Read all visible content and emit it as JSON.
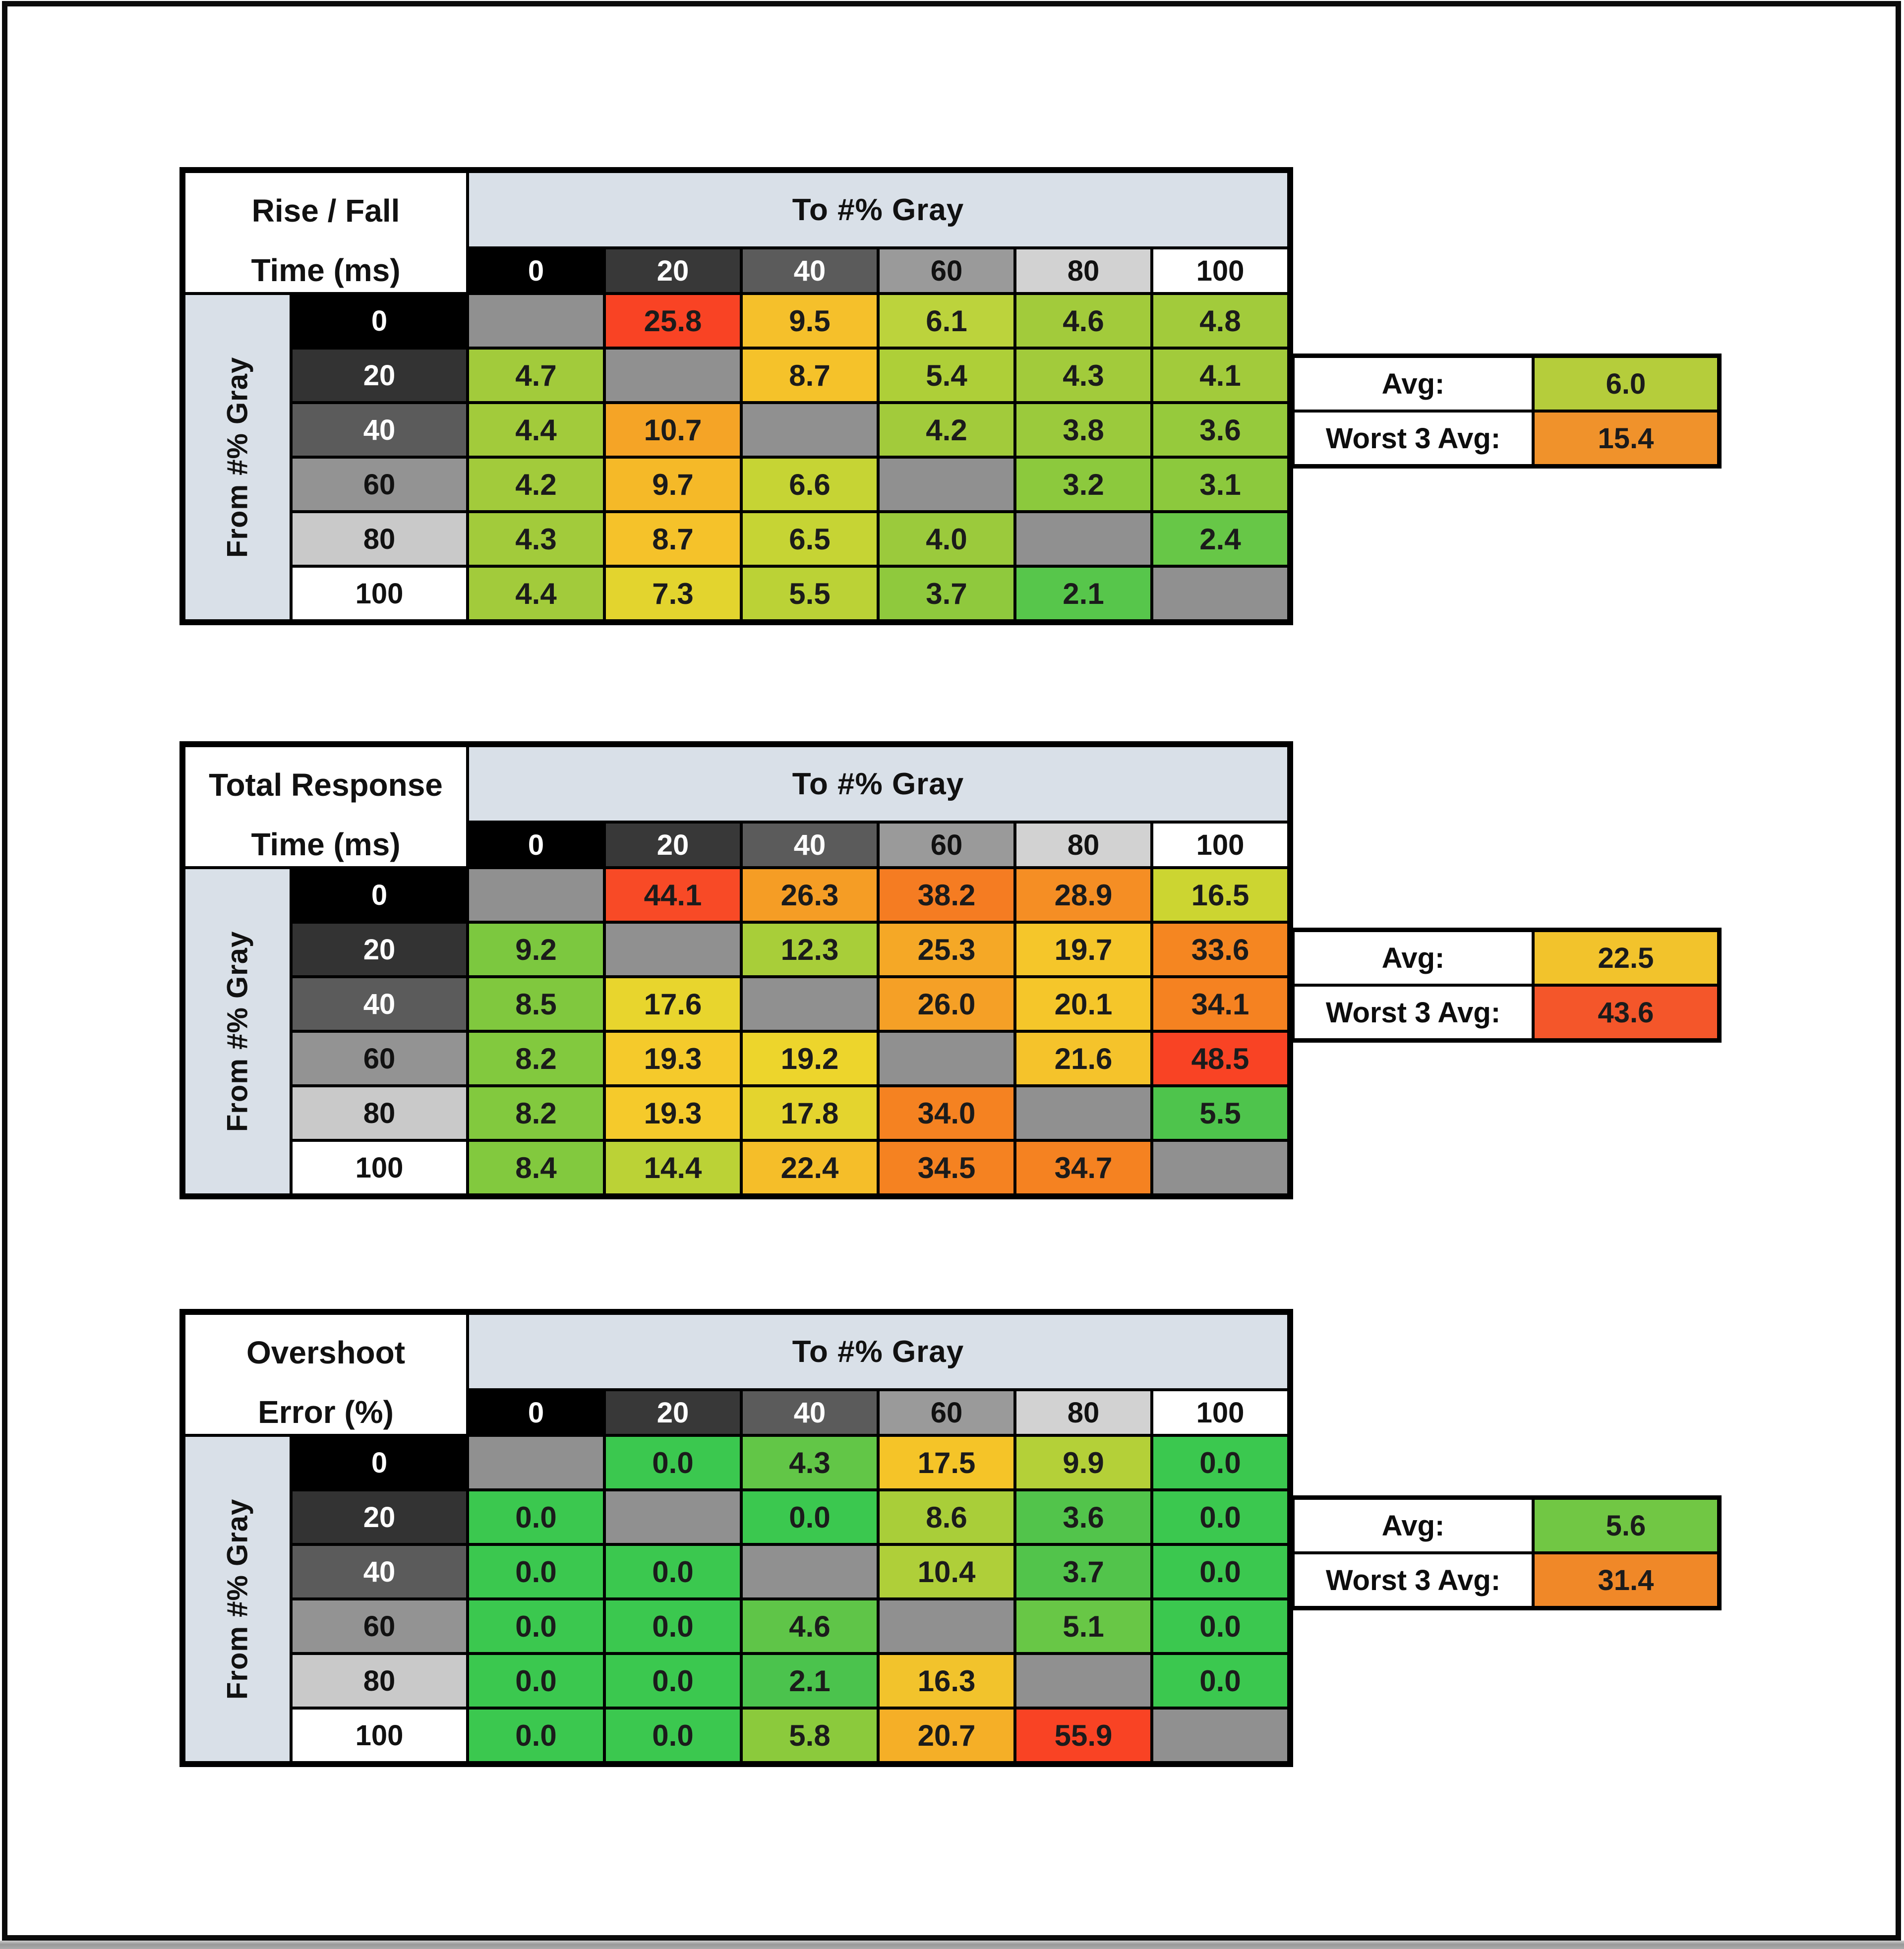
{
  "style": {
    "band_color": "#D9E0E8",
    "diagonal_color": "#909090",
    "grid_line_color": "#000000",
    "number_text_color": "#1B1B1B",
    "header_text_colors": [
      "#FFFFFF",
      "#FFFFFF",
      "#FFFFFF",
      "#111111",
      "#111111",
      "#111111"
    ],
    "row_header_bg": [
      "#000000",
      "#333333",
      "#5B5B5B",
      "#939393",
      "#C9C9C9",
      "#FFFFFF"
    ],
    "col_header_bg": [
      "#000000",
      "#383838",
      "#5B5B5B",
      "#9A9A9A",
      "#D2D2D2",
      "#FFFFFF"
    ]
  },
  "chart_data": [
    {
      "type": "heatmap",
      "title": "Rise / Fall Time (ms)",
      "title_lines": [
        "Rise / Fall",
        "Time (ms)"
      ],
      "col_axis_label": "To #% Gray",
      "row_axis_label": "From #% Gray",
      "categories": [
        "0",
        "20",
        "40",
        "60",
        "80",
        "100"
      ],
      "matrix": [
        [
          null,
          25.8,
          9.5,
          6.1,
          4.6,
          4.8
        ],
        [
          4.7,
          null,
          8.7,
          5.4,
          4.3,
          4.1
        ],
        [
          4.4,
          10.7,
          null,
          4.2,
          3.8,
          3.6
        ],
        [
          4.2,
          9.7,
          6.6,
          null,
          3.2,
          3.1
        ],
        [
          4.3,
          8.7,
          6.5,
          4.0,
          null,
          2.4
        ],
        [
          4.4,
          7.3,
          5.5,
          3.7,
          2.1,
          null
        ]
      ],
      "cell_colors": [
        [
          null,
          "#F94324",
          "#F5C02B",
          "#BCD33C",
          "#A2CB3B",
          "#A2CB3B"
        ],
        [
          "#A2CB3B",
          null,
          "#F5C22A",
          "#AECF38",
          "#A2CB3B",
          "#A2CB3B"
        ],
        [
          "#A2CB3B",
          "#F5A426",
          null,
          "#A2CB3B",
          "#9BCA3C",
          "#96CA3C"
        ],
        [
          "#A2CB3B",
          "#F5B928",
          "#C6D434",
          null,
          "#8CC93D",
          "#8CC93D"
        ],
        [
          "#A2CB3B",
          "#F5C22A",
          "#C6D434",
          "#9BCA3C",
          null,
          "#67C747"
        ],
        [
          "#A2CB3B",
          "#E3D42E",
          "#BBD236",
          "#8FC93D",
          "#57C64B",
          null
        ]
      ],
      "stats": {
        "avg_label": "Avg:",
        "avg": 6.0,
        "avg_color": "#B5CD3B",
        "worst_label": "Worst 3 Avg:",
        "worst": 15.4,
        "worst_color": "#F0922B"
      }
    },
    {
      "type": "heatmap",
      "title": "Total Response Time (ms)",
      "title_lines": [
        "Total Response",
        "Time (ms)"
      ],
      "col_axis_label": "To #% Gray",
      "row_axis_label": "From #% Gray",
      "categories": [
        "0",
        "20",
        "40",
        "60",
        "80",
        "100"
      ],
      "matrix": [
        [
          null,
          44.1,
          26.3,
          38.2,
          28.9,
          16.5
        ],
        [
          9.2,
          null,
          12.3,
          25.3,
          19.7,
          33.6
        ],
        [
          8.5,
          17.6,
          null,
          26.0,
          20.1,
          34.1
        ],
        [
          8.2,
          19.3,
          19.2,
          null,
          21.6,
          48.5
        ],
        [
          8.2,
          19.3,
          17.8,
          34.0,
          null,
          5.5
        ],
        [
          8.4,
          14.4,
          22.4,
          34.5,
          34.7,
          null
        ]
      ],
      "cell_colors": [
        [
          null,
          "#F84A26",
          "#F59D25",
          "#F57C22",
          "#F58E24",
          "#CCD531"
        ],
        [
          "#7CC83F",
          null,
          "#A8CE39",
          "#F5A826",
          "#F5C62A",
          "#F58621"
        ],
        [
          "#80C83E",
          "#E8D52D",
          null,
          "#F5A026",
          "#F5C62A",
          "#F58221"
        ],
        [
          "#82C93E",
          "#F5CA2B",
          "#EDD52C",
          null,
          "#F5C32B",
          "#F94324"
        ],
        [
          "#82C93E",
          "#F5CA2B",
          "#E4D42E",
          "#F58221",
          null,
          "#4EC44C"
        ],
        [
          "#82C93E",
          "#BBD236",
          "#F5BE29",
          "#F58221",
          "#F58221",
          null
        ]
      ],
      "stats": {
        "avg_label": "Avg:",
        "avg": 22.5,
        "avg_color": "#F2C32C",
        "worst_label": "Worst 3 Avg:",
        "worst": 43.6,
        "worst_color": "#F4562A"
      }
    },
    {
      "type": "heatmap",
      "title": "Overshoot Error (%)",
      "title_lines": [
        "Overshoot",
        "Error (%)"
      ],
      "col_axis_label": "To #% Gray",
      "row_axis_label": "From #% Gray",
      "categories": [
        "0",
        "20",
        "40",
        "60",
        "80",
        "100"
      ],
      "matrix": [
        [
          null,
          0.0,
          4.3,
          17.5,
          9.9,
          0.0
        ],
        [
          0.0,
          null,
          0.0,
          8.6,
          3.6,
          0.0
        ],
        [
          0.0,
          0.0,
          null,
          10.4,
          3.7,
          0.0
        ],
        [
          0.0,
          0.0,
          4.6,
          null,
          5.1,
          0.0
        ],
        [
          0.0,
          0.0,
          2.1,
          16.3,
          null,
          0.0
        ],
        [
          0.0,
          0.0,
          5.8,
          20.7,
          55.9,
          null
        ]
      ],
      "cell_colors": [
        [
          null,
          "#3BC84F",
          "#62C647",
          "#F5C428",
          "#B4D038",
          "#3BC84F"
        ],
        [
          "#3BC84F",
          null,
          "#3BC84F",
          "#A9CE39",
          "#52C44B",
          "#3BC84F"
        ],
        [
          "#3BC84F",
          "#3BC84F",
          null,
          "#AFCF39",
          "#52C44B",
          "#3BC84F"
        ],
        [
          "#3BC84F",
          "#3BC84F",
          "#5FC548",
          null,
          "#68C746",
          "#3BC84F"
        ],
        [
          "#3BC84F",
          "#3BC84F",
          "#4BC34D",
          "#F2C32C",
          null,
          "#3BC84F"
        ],
        [
          "#3BC84F",
          "#3BC84F",
          "#8BCA3C",
          "#F5AF27",
          "#F94324",
          null
        ]
      ],
      "stats": {
        "avg_label": "Avg:",
        "avg": 5.6,
        "avg_color": "#71C744",
        "worst_label": "Worst 3 Avg:",
        "worst": 31.4,
        "worst_color": "#F08828"
      }
    }
  ]
}
